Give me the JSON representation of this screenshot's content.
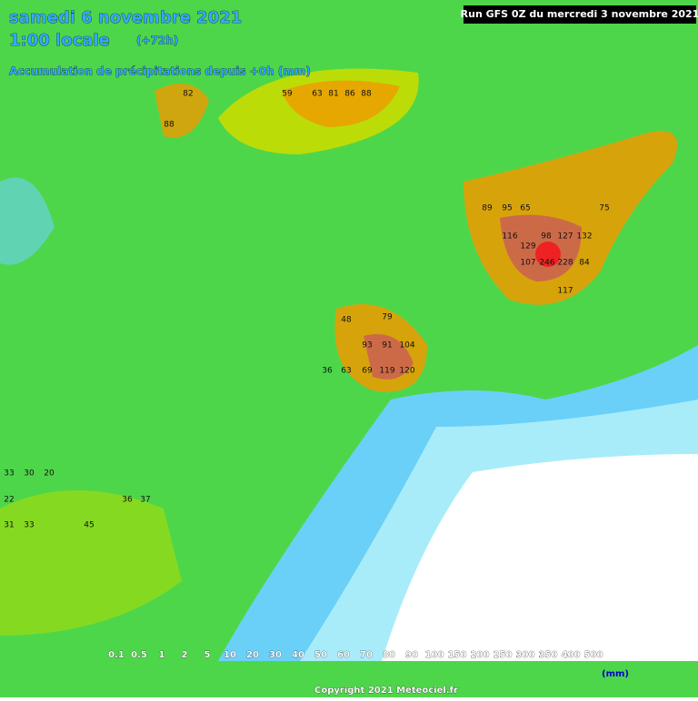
{
  "header": {
    "date": "samedi 6 novembre 2021",
    "local_time": "1:00 locale",
    "lead": "(+72h)",
    "subtitle": "Accumulation de précipitations depuis +0h (mm)",
    "run": "Run GFS 0Z du mercredi 3 novembre 2021"
  },
  "grid_values": [
    82,
    88,
    59,
    63,
    81,
    86,
    88,
    116,
    129,
    98,
    127,
    132,
    107,
    246,
    228,
    84,
    117,
    89,
    95,
    65,
    75,
    79,
    48,
    93,
    91,
    104,
    36,
    63,
    69,
    119,
    120,
    33,
    30,
    20,
    22,
    36,
    37,
    31,
    33,
    45
  ],
  "legend": {
    "labels": [
      "0.1",
      "0.5",
      "1",
      "2",
      "5",
      "10",
      "20",
      "30",
      "40",
      "50",
      "60",
      "70",
      "80",
      "90",
      "100",
      "150",
      "200",
      "250",
      "300",
      "350",
      "400",
      "500"
    ],
    "colors": [
      "#ffffff",
      "#a8ecfa",
      "#6ad0f8",
      "#2a8ef0",
      "#1fe09a",
      "#36cc6e",
      "#4ed64a",
      "#72e82a",
      "#9cdc10",
      "#bcdc08",
      "#dce800",
      "#f0c000",
      "#f09a00",
      "#f0a070",
      "#d09898",
      "#cc6a48",
      "#dc4838",
      "#ee2222",
      "#ff0000",
      "#c00010",
      "#880030",
      "#9a60f0"
    ],
    "unit": "(mm)"
  },
  "footer": {
    "copyright": "Copyright 2021 Meteociel.fr"
  }
}
